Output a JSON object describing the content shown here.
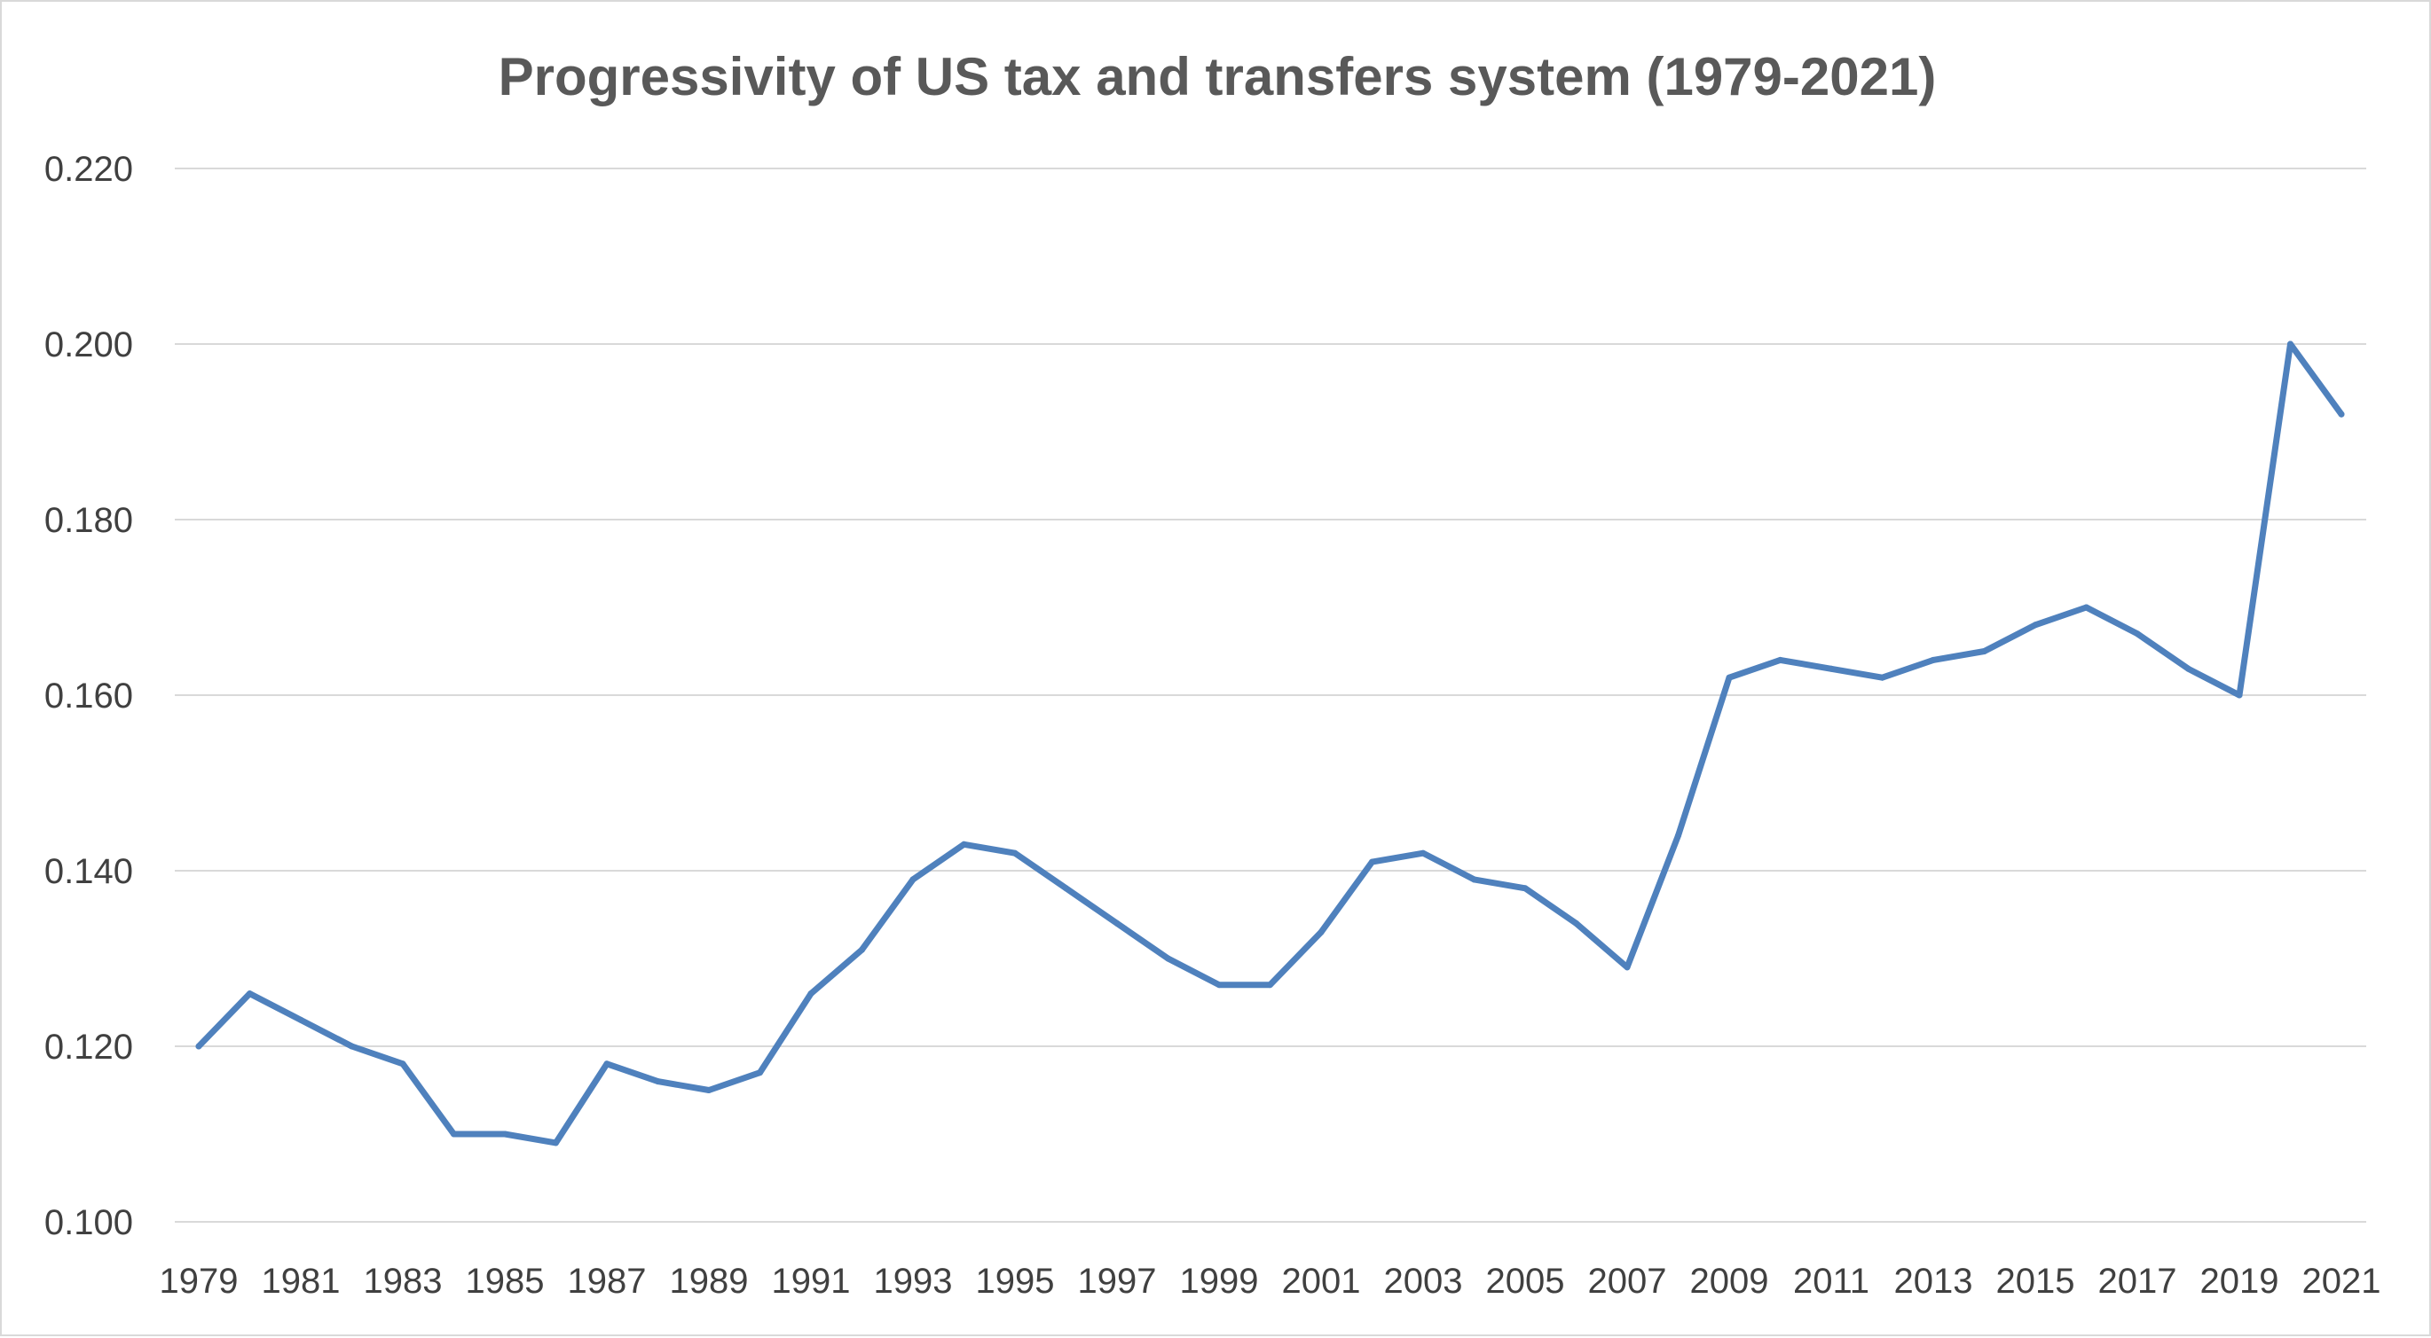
{
  "chart_data": {
    "type": "line",
    "title": "Progressivity of US tax and transfers system (1979-2021)",
    "xlabel": "",
    "ylabel": "",
    "ylim": [
      0.1,
      0.22
    ],
    "y_ticks": [
      "0.100",
      "0.120",
      "0.140",
      "0.160",
      "0.180",
      "0.200",
      "0.220"
    ],
    "y_tick_values": [
      0.1,
      0.12,
      0.14,
      0.16,
      0.18,
      0.2,
      0.22
    ],
    "x_tick_labels": [
      "1979",
      "1981",
      "1983",
      "1985",
      "1987",
      "1989",
      "1991",
      "1993",
      "1995",
      "1997",
      "1999",
      "2001",
      "2003",
      "2005",
      "2007",
      "2009",
      "2011",
      "2013",
      "2015",
      "2017",
      "2019",
      "2021"
    ],
    "grid": true,
    "legend": "none",
    "series": [
      {
        "name": "Progressivity",
        "color": "#4f81bd",
        "x": [
          1979,
          1980,
          1981,
          1982,
          1983,
          1984,
          1985,
          1986,
          1987,
          1988,
          1989,
          1990,
          1991,
          1992,
          1993,
          1994,
          1995,
          1996,
          1997,
          1998,
          1999,
          2000,
          2001,
          2002,
          2003,
          2004,
          2005,
          2006,
          2007,
          2008,
          2009,
          2010,
          2011,
          2012,
          2013,
          2014,
          2015,
          2016,
          2017,
          2018,
          2019,
          2020,
          2021
        ],
        "values": [
          0.12,
          0.126,
          0.123,
          0.12,
          0.118,
          0.11,
          0.11,
          0.109,
          0.118,
          0.116,
          0.115,
          0.117,
          0.126,
          0.131,
          0.139,
          0.143,
          0.142,
          0.138,
          0.134,
          0.13,
          0.127,
          0.127,
          0.133,
          0.141,
          0.142,
          0.139,
          0.138,
          0.134,
          0.129,
          0.144,
          0.162,
          0.164,
          0.163,
          0.162,
          0.164,
          0.165,
          0.168,
          0.17,
          0.167,
          0.163,
          0.16,
          0.2,
          0.192
        ]
      }
    ]
  }
}
